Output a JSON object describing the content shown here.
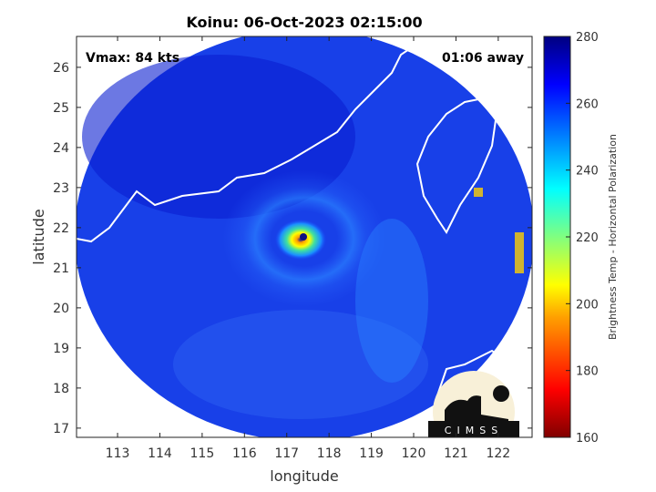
{
  "title": "Koinu: 06-Oct-2023 02:15:00",
  "vmax_label": "Vmax: 84 kts",
  "time_away_label": "01:06 away",
  "xlabel": "longitude",
  "ylabel": "latitude",
  "x_ticks": [
    "113",
    "114",
    "115",
    "116",
    "117",
    "118",
    "119",
    "120",
    "121",
    "122"
  ],
  "y_ticks": [
    "26",
    "25",
    "24",
    "23",
    "22",
    "21",
    "20",
    "19",
    "18",
    "17"
  ],
  "colorbar": {
    "label": "Brightness Temp - Horizontal Polarization",
    "ticks": [
      "280",
      "260",
      "240",
      "220",
      "200",
      "180",
      "160"
    ],
    "range": [
      160,
      280
    ],
    "colors": [
      "#800000",
      "#ff0000",
      "#ffa000",
      "#ffff00",
      "#80ff80",
      "#00ffff",
      "#0080ff",
      "#0000ff",
      "#000080"
    ]
  },
  "logo_text": "CIMSS",
  "xlim": [
    112.03,
    122.8
  ],
  "ylim": [
    16.77,
    26.77
  ]
}
